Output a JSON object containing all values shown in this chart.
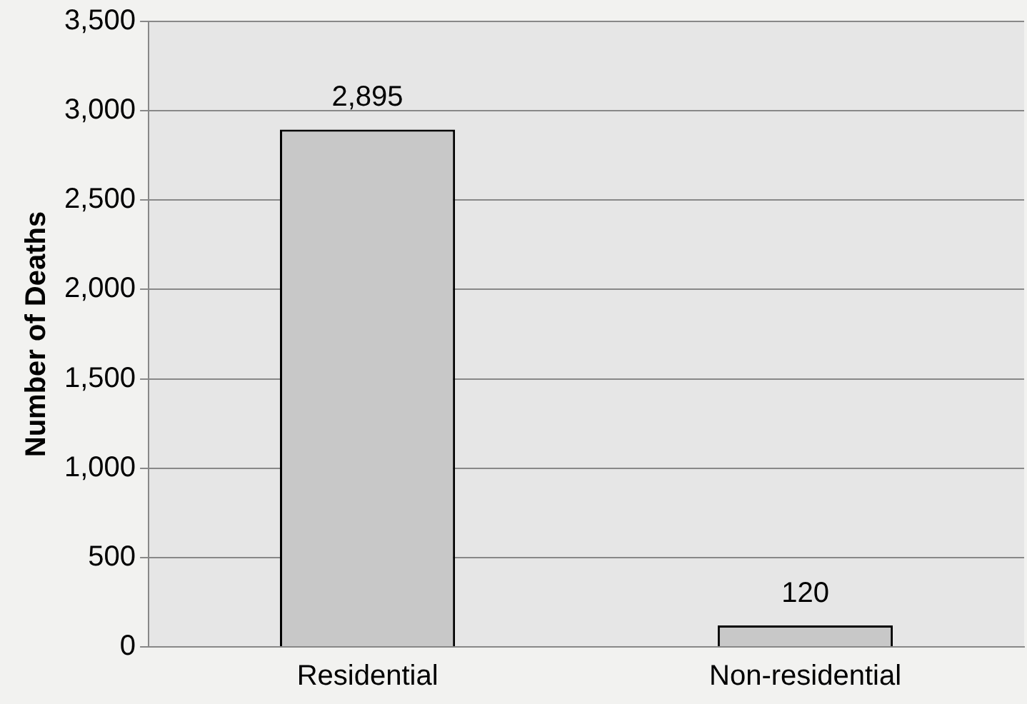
{
  "chart_data": {
    "type": "bar",
    "ylabel": "Number of Deaths",
    "categories": [
      "Residential",
      "Non-residential"
    ],
    "values": [
      2895,
      120
    ],
    "value_labels": [
      "2,895",
      "120"
    ],
    "color": "#c8c8c8",
    "ylim": [
      0,
      3500
    ],
    "yticks": [
      {
        "value": 0,
        "label": "0"
      },
      {
        "value": 500,
        "label": "500"
      },
      {
        "value": 1000,
        "label": "1,000"
      },
      {
        "value": 1500,
        "label": "1,500"
      },
      {
        "value": 2000,
        "label": "2,000"
      },
      {
        "value": 2500,
        "label": "2,500"
      },
      {
        "value": 3000,
        "label": "3,000"
      },
      {
        "value": 3500,
        "label": "3,500"
      }
    ],
    "grid": "y"
  }
}
